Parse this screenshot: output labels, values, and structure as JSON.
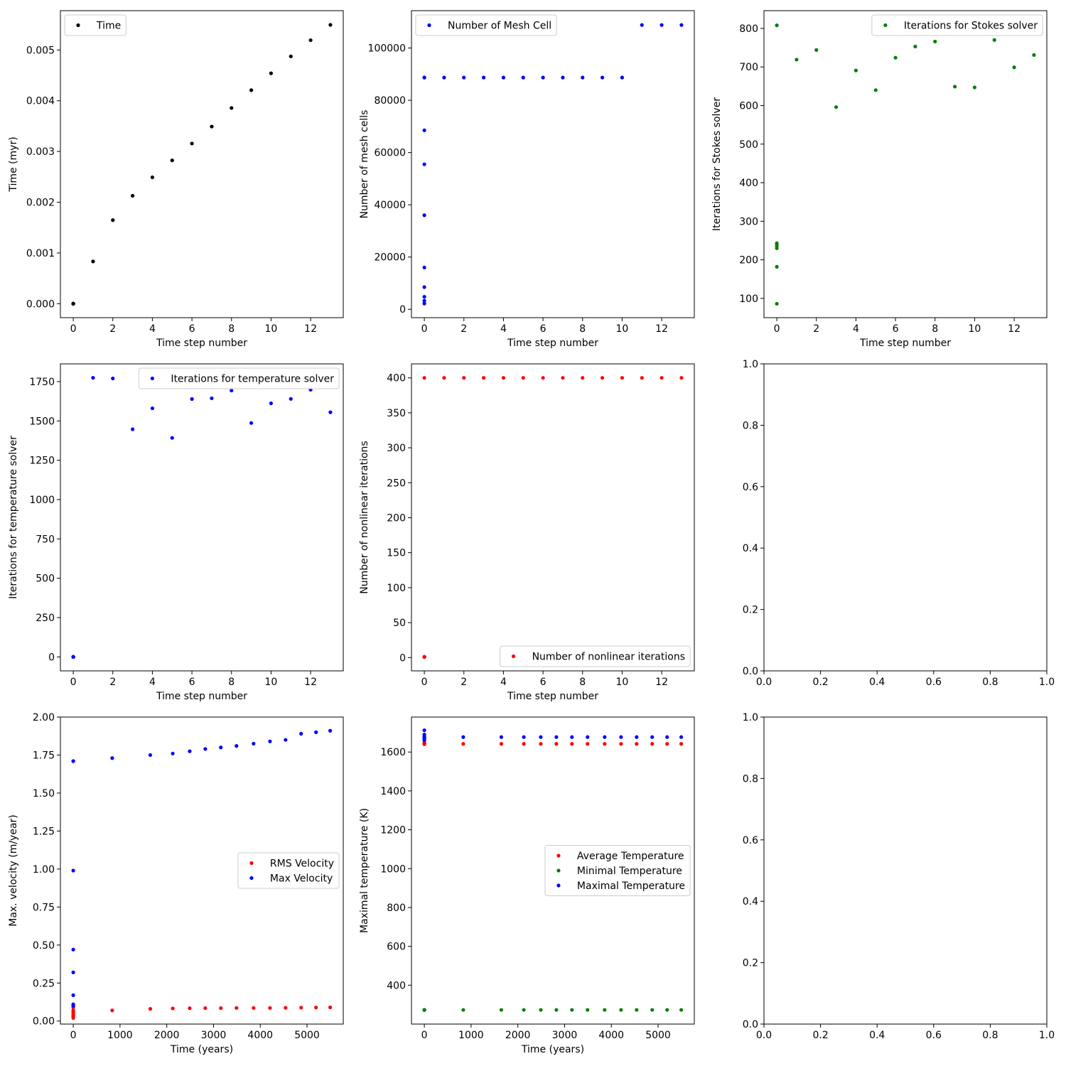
{
  "chart_data": [
    {
      "type": "scatter",
      "xlabel": "Time step number",
      "ylabel": "Time (myr)",
      "xlim": [
        -0.65,
        13.65
      ],
      "ylim": [
        -0.000275,
        0.005775
      ],
      "xticks": [
        0,
        2,
        4,
        6,
        8,
        10,
        12
      ],
      "xtick_labels": [
        "0",
        "2",
        "4",
        "6",
        "8",
        "10",
        "12"
      ],
      "yticks": [
        0,
        0.001,
        0.002,
        0.003,
        0.004,
        0.005
      ],
      "ytick_labels": [
        "0.000",
        "0.001",
        "0.002",
        "0.003",
        "0.004",
        "0.005"
      ],
      "legend_position": "upper-left",
      "series": [
        {
          "name": "Time",
          "color": "#000000",
          "x": [
            0,
            0,
            0,
            0,
            0,
            0,
            0,
            0,
            1,
            2,
            3,
            4,
            5,
            6,
            7,
            8,
            9,
            10,
            11,
            12,
            13
          ],
          "y": [
            0,
            0,
            0,
            0,
            0,
            0,
            0,
            0,
            0.000833,
            0.001647,
            0.002128,
            0.002491,
            0.002824,
            0.003157,
            0.003491,
            0.003857,
            0.004208,
            0.004541,
            0.004874,
            0.005193,
            0.005495
          ]
        }
      ]
    },
    {
      "type": "scatter",
      "xlabel": "Time step number",
      "ylabel": "Number of mesh cells",
      "xlim": [
        -0.65,
        13.65
      ],
      "ylim": [
        -3200,
        114300
      ],
      "xticks": [
        0,
        2,
        4,
        6,
        8,
        10,
        12
      ],
      "xtick_labels": [
        "0",
        "2",
        "4",
        "6",
        "8",
        "10",
        "12"
      ],
      "yticks": [
        0,
        20000,
        40000,
        60000,
        80000,
        100000
      ],
      "ytick_labels": [
        "0",
        "20000",
        "40000",
        "60000",
        "80000",
        "100000"
      ],
      "legend_position": "upper-left",
      "series": [
        {
          "name": "Number of Mesh Cell",
          "color": "#0000ff",
          "x": [
            0,
            0,
            0,
            0,
            0,
            0,
            0,
            0,
            0,
            0,
            1,
            2,
            3,
            4,
            5,
            6,
            7,
            8,
            9,
            10,
            11,
            12,
            13
          ],
          "y": [
            2200,
            3300,
            4800,
            8500,
            16000,
            36000,
            55500,
            68500,
            88700,
            88700,
            88700,
            88700,
            88700,
            88700,
            88700,
            88700,
            88700,
            88700,
            88700,
            88700,
            108800,
            108800,
            108800
          ]
        }
      ]
    },
    {
      "type": "scatter",
      "xlabel": "Time step number",
      "ylabel": "Iterations for Stokes solver",
      "xlim": [
        -0.65,
        13.65
      ],
      "ylim": [
        50,
        846
      ],
      "xticks": [
        0,
        2,
        4,
        6,
        8,
        10,
        12
      ],
      "xtick_labels": [
        "0",
        "2",
        "4",
        "6",
        "8",
        "10",
        "12"
      ],
      "yticks": [
        100,
        200,
        300,
        400,
        500,
        600,
        700,
        800
      ],
      "ytick_labels": [
        "100",
        "200",
        "300",
        "400",
        "500",
        "600",
        "700",
        "800"
      ],
      "legend_position": "upper-right",
      "series": [
        {
          "name": "Iterations for Stokes solver",
          "color": "#008000",
          "x": [
            0,
            0,
            0,
            0,
            0,
            0,
            0,
            1,
            2,
            3,
            4,
            5,
            6,
            7,
            8,
            9,
            10,
            11,
            12,
            13
          ],
          "y": [
            86,
            182,
            230,
            236,
            241,
            243,
            808,
            719,
            744,
            596,
            691,
            640,
            724,
            753,
            766,
            649,
            647,
            770,
            699,
            731
          ]
        }
      ]
    },
    {
      "type": "scatter",
      "xlabel": "Time step number",
      "ylabel": "Iterations for temperature solver",
      "xlim": [
        -0.65,
        13.65
      ],
      "ylim": [
        -88.7,
        1862.7
      ],
      "xticks": [
        0,
        2,
        4,
        6,
        8,
        10,
        12
      ],
      "xtick_labels": [
        "0",
        "2",
        "4",
        "6",
        "8",
        "10",
        "12"
      ],
      "yticks": [
        0,
        250,
        500,
        750,
        1000,
        1250,
        1500,
        1750
      ],
      "ytick_labels": [
        "0",
        "250",
        "500",
        "750",
        "1000",
        "1250",
        "1500",
        "1750"
      ],
      "legend_position": "upper-right",
      "series": [
        {
          "name": "Iterations for temperature solver",
          "color": "#0000ff",
          "x": [
            0,
            0,
            0,
            0,
            0,
            0,
            0,
            1,
            2,
            3,
            4,
            5,
            6,
            7,
            8,
            9,
            10,
            11,
            12,
            13
          ],
          "y": [
            0,
            0,
            0,
            0,
            0,
            0,
            0,
            1774,
            1770,
            1447,
            1580,
            1392,
            1639,
            1644,
            1693,
            1487,
            1612,
            1640,
            1698,
            1555
          ]
        }
      ]
    },
    {
      "type": "scatter",
      "xlabel": "Time step number",
      "ylabel": "Number of nonlinear iterations",
      "xlim": [
        -0.65,
        13.65
      ],
      "ylim": [
        -19,
        420
      ],
      "xticks": [
        0,
        2,
        4,
        6,
        8,
        10,
        12
      ],
      "xtick_labels": [
        "0",
        "2",
        "4",
        "6",
        "8",
        "10",
        "12"
      ],
      "yticks": [
        0,
        50,
        100,
        150,
        200,
        250,
        300,
        350,
        400
      ],
      "ytick_labels": [
        "0",
        "50",
        "100",
        "150",
        "200",
        "250",
        "300",
        "350",
        "400"
      ],
      "legend_position": "lower-right",
      "series": [
        {
          "name": "Number of nonlinear iterations",
          "color": "#ff0000",
          "x": [
            0,
            0,
            0,
            0,
            0,
            0,
            0,
            0,
            1,
            2,
            3,
            4,
            5,
            6,
            7,
            8,
            9,
            10,
            11,
            12,
            13
          ],
          "y": [
            1,
            1,
            1,
            1,
            1,
            1,
            1,
            400,
            400,
            400,
            400,
            400,
            400,
            400,
            400,
            400,
            400,
            400,
            400,
            400,
            400
          ]
        }
      ]
    },
    {
      "type": "scatter",
      "xlabel": "",
      "ylabel": "",
      "xlim": [
        0,
        1
      ],
      "ylim": [
        0,
        1
      ],
      "xticks": [
        0,
        0.2,
        0.4,
        0.6,
        0.8,
        1
      ],
      "xtick_labels": [
        "0.0",
        "0.2",
        "0.4",
        "0.6",
        "0.8",
        "1.0"
      ],
      "yticks": [
        0,
        0.2,
        0.4,
        0.6,
        0.8,
        1
      ],
      "ytick_labels": [
        "0.0",
        "0.2",
        "0.4",
        "0.6",
        "0.8",
        "1.0"
      ],
      "series": []
    },
    {
      "type": "scatter",
      "xlabel": "Time (years)",
      "ylabel": "Max. velocity (m/year)",
      "xlim": [
        -275,
        5775
      ],
      "ylim": [
        -0.02,
        2.0
      ],
      "xticks": [
        0,
        1000,
        2000,
        3000,
        4000,
        5000
      ],
      "xtick_labels": [
        "0",
        "1000",
        "2000",
        "3000",
        "4000",
        "5000"
      ],
      "yticks": [
        0,
        0.25,
        0.5,
        0.75,
        1,
        1.25,
        1.5,
        1.75,
        2
      ],
      "ytick_labels": [
        "0.00",
        "0.25",
        "0.50",
        "0.75",
        "1.00",
        "1.25",
        "1.50",
        "1.75",
        "2.00"
      ],
      "legend_position": "center-right",
      "series": [
        {
          "name": "RMS Velocity",
          "color": "#ff0000",
          "x": [
            0,
            0,
            0,
            0,
            0,
            0,
            0,
            0,
            833,
            1647,
            2128,
            2491,
            2824,
            3157,
            3491,
            3857,
            4208,
            4541,
            4874,
            5193,
            5495
          ],
          "y": [
            0.02,
            0.03,
            0.04,
            0.05,
            0.06,
            0.07,
            0.09,
            0.1,
            0.07,
            0.08,
            0.083,
            0.084,
            0.085,
            0.085,
            0.086,
            0.086,
            0.086,
            0.087,
            0.088,
            0.089,
            0.09
          ]
        },
        {
          "name": "Max Velocity",
          "color": "#0000ff",
          "x": [
            0,
            0,
            0,
            0,
            0,
            0,
            0,
            0,
            833,
            1647,
            2128,
            2491,
            2824,
            3157,
            3491,
            3857,
            4208,
            4541,
            4874,
            5193,
            5495
          ],
          "y": [
            0.1,
            0.11,
            0.17,
            0.32,
            0.47,
            0.99,
            1.71,
            1.71,
            1.73,
            1.75,
            1.76,
            1.775,
            1.79,
            1.8,
            1.81,
            1.825,
            1.84,
            1.85,
            1.89,
            1.9,
            1.91
          ]
        }
      ]
    },
    {
      "type": "scatter",
      "xlabel": "Time (years)",
      "ylabel": "Maximal temperature (K)",
      "xlim": [
        -275,
        5775
      ],
      "ylim": [
        200,
        1780
      ],
      "xticks": [
        0,
        1000,
        2000,
        3000,
        4000,
        5000
      ],
      "xtick_labels": [
        "0",
        "1000",
        "2000",
        "3000",
        "4000",
        "5000"
      ],
      "yticks": [
        400,
        600,
        800,
        1000,
        1200,
        1400,
        1600
      ],
      "ytick_labels": [
        "400",
        "600",
        "800",
        "1000",
        "1200",
        "1400",
        "1600"
      ],
      "legend_position": "center-right",
      "series": [
        {
          "name": "Average Temperature",
          "color": "#ff0000",
          "x": [
            0,
            0,
            0,
            0,
            0,
            0,
            0,
            833,
            1647,
            2128,
            2491,
            2824,
            3157,
            3491,
            3857,
            4208,
            4541,
            4874,
            5193,
            5495
          ],
          "y": [
            1640,
            1641,
            1642,
            1643,
            1644,
            1645,
            1646,
            1642,
            1642,
            1642,
            1642,
            1642,
            1642,
            1642,
            1642,
            1642,
            1642,
            1642,
            1642,
            1642
          ]
        },
        {
          "name": "Minimal Temperature",
          "color": "#008000",
          "x": [
            0,
            0,
            0,
            0,
            0,
            0,
            0,
            833,
            1647,
            2128,
            2491,
            2824,
            3157,
            3491,
            3857,
            4208,
            4541,
            4874,
            5193,
            5495
          ],
          "y": [
            272,
            273,
            273,
            273,
            273,
            273,
            273,
            273,
            273,
            273,
            273,
            273,
            273,
            273,
            273,
            273,
            273,
            273,
            273,
            273
          ]
        },
        {
          "name": "Maximal Temperature",
          "color": "#0000ff",
          "x": [
            0,
            0,
            0,
            0,
            0,
            0,
            0,
            833,
            1647,
            2128,
            2491,
            2824,
            3157,
            3491,
            3857,
            4208,
            4541,
            4874,
            5193,
            5495
          ],
          "y": [
            1660,
            1668,
            1672,
            1676,
            1680,
            1690,
            1712,
            1677,
            1677,
            1677,
            1677,
            1677,
            1677,
            1677,
            1677,
            1677,
            1677,
            1677,
            1677,
            1677
          ]
        }
      ]
    },
    {
      "type": "scatter",
      "xlabel": "",
      "ylabel": "",
      "xlim": [
        0,
        1
      ],
      "ylim": [
        0,
        1
      ],
      "xticks": [
        0,
        0.2,
        0.4,
        0.6,
        0.8,
        1
      ],
      "xtick_labels": [
        "0.0",
        "0.2",
        "0.4",
        "0.6",
        "0.8",
        "1.0"
      ],
      "yticks": [
        0,
        0.2,
        0.4,
        0.6,
        0.8,
        1
      ],
      "ytick_labels": [
        "0.0",
        "0.2",
        "0.4",
        "0.6",
        "0.8",
        "1.0"
      ],
      "series": []
    }
  ]
}
